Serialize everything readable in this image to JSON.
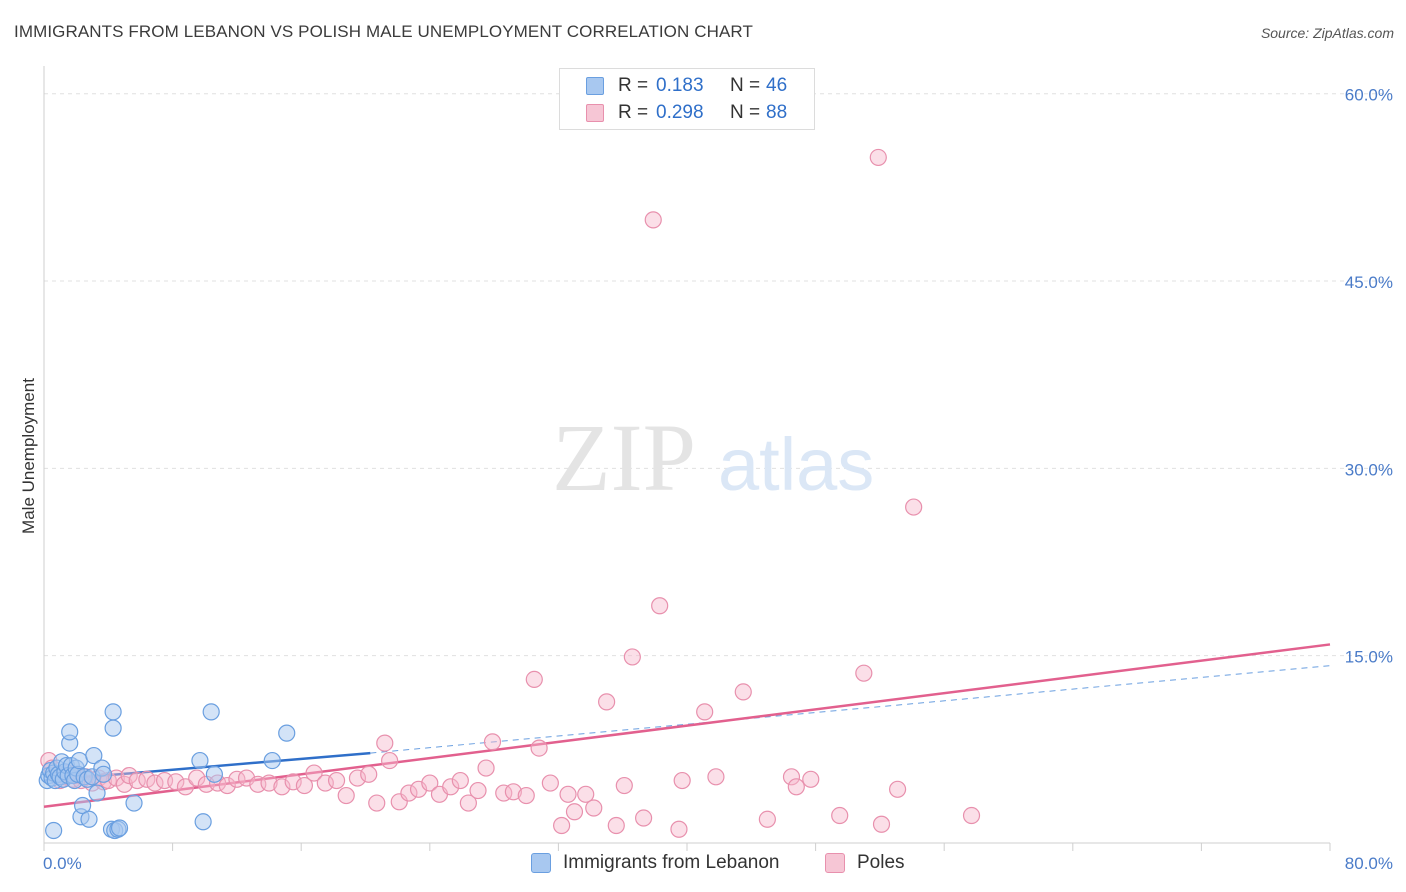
{
  "header": {
    "title": "IMMIGRANTS FROM LEBANON VS POLISH MALE UNEMPLOYMENT CORRELATION CHART",
    "source": "Source: ZipAtlas.com"
  },
  "watermark": {
    "part1": "ZIP",
    "part2": "atlas"
  },
  "legend": {
    "rows": [
      {
        "r_label": "R =",
        "r_value": "0.183",
        "n_label": "N =",
        "n_value": "46"
      },
      {
        "r_label": "R =",
        "r_value": "0.298",
        "n_label": "N =",
        "n_value": "88"
      }
    ]
  },
  "bottom_legend": {
    "items": [
      {
        "label": "Immigrants from Lebanon"
      },
      {
        "label": "Poles"
      }
    ]
  },
  "colors": {
    "blue_fill": "#a8c8f0",
    "blue_stroke": "#6a9fe0",
    "blue_line": "#2f6fc9",
    "pink_fill": "#f6b8cc",
    "pink_stroke": "#e890ad",
    "pink_line": "#e2608e",
    "grid": "#e0e0e0",
    "tick_text": "#4a7bc8"
  },
  "chart_data": {
    "type": "scatter",
    "title": "IMMIGRANTS FROM LEBANON VS POLISH MALE UNEMPLOYMENT CORRELATION CHART",
    "xlabel": "",
    "ylabel": "Male Unemployment",
    "xlim": [
      0,
      80
    ],
    "ylim": [
      0,
      61.5
    ],
    "x_tick_labels": [
      "0.0%",
      "80.0%"
    ],
    "y_ticks": [
      15,
      30,
      45,
      60
    ],
    "y_tick_labels": [
      "15.0%",
      "30.0%",
      "45.0%",
      "60.0%"
    ],
    "grid": true,
    "legend_position": "top-center",
    "series": [
      {
        "name": "Immigrants from Lebanon",
        "R": 0.183,
        "N": 46,
        "trend": {
          "x": [
            0,
            20.3
          ],
          "y": [
            5.0,
            7.2
          ]
        },
        "trend_extension": {
          "x": [
            20.3,
            80
          ],
          "y": [
            7.2,
            14.2
          ]
        },
        "points": [
          [
            0.2,
            5.0
          ],
          [
            0.3,
            5.4
          ],
          [
            0.4,
            5.8
          ],
          [
            0.5,
            5.2
          ],
          [
            0.6,
            5.6
          ],
          [
            0.7,
            5.0
          ],
          [
            0.8,
            6.0
          ],
          [
            0.9,
            5.5
          ],
          [
            1.0,
            5.3
          ],
          [
            1.1,
            6.5
          ],
          [
            1.2,
            5.1
          ],
          [
            1.3,
            5.7
          ],
          [
            1.4,
            6.2
          ],
          [
            1.5,
            5.4
          ],
          [
            1.6,
            8.0
          ],
          [
            1.6,
            8.9
          ],
          [
            1.7,
            6.2
          ],
          [
            1.8,
            5.4
          ],
          [
            1.9,
            5.0
          ],
          [
            2.0,
            6.0
          ],
          [
            2.1,
            5.5
          ],
          [
            2.2,
            6.6
          ],
          [
            2.3,
            2.1
          ],
          [
            2.4,
            3.0
          ],
          [
            2.5,
            5.3
          ],
          [
            2.7,
            5.1
          ],
          [
            2.8,
            1.9
          ],
          [
            3.0,
            5.3
          ],
          [
            3.3,
            4.0
          ],
          [
            3.1,
            7.0
          ],
          [
            3.6,
            6.0
          ],
          [
            3.7,
            5.5
          ],
          [
            4.2,
            1.1
          ],
          [
            4.3,
            10.5
          ],
          [
            4.3,
            9.2
          ],
          [
            4.4,
            1.0
          ],
          [
            4.6,
            1.1
          ],
          [
            4.7,
            1.2
          ],
          [
            5.6,
            3.2
          ],
          [
            9.7,
            6.6
          ],
          [
            9.9,
            1.7
          ],
          [
            10.4,
            10.5
          ],
          [
            10.6,
            5.5
          ],
          [
            14.2,
            6.6
          ],
          [
            15.1,
            8.8
          ],
          [
            0.6,
            1.0
          ]
        ]
      },
      {
        "name": "Poles",
        "R": 0.298,
        "N": 88,
        "trend": {
          "x": [
            0,
            80
          ],
          "y": [
            2.9,
            15.9
          ]
        },
        "points": [
          [
            0.3,
            6.6
          ],
          [
            0.5,
            6.0
          ],
          [
            0.8,
            5.5
          ],
          [
            1.0,
            5.0
          ],
          [
            1.3,
            5.3
          ],
          [
            1.5,
            5.6
          ],
          [
            1.8,
            5.1
          ],
          [
            2.0,
            5.4
          ],
          [
            2.3,
            5.0
          ],
          [
            2.6,
            5.3
          ],
          [
            3.0,
            4.8
          ],
          [
            3.4,
            5.2
          ],
          [
            3.7,
            4.9
          ],
          [
            4.0,
            5.0
          ],
          [
            4.5,
            5.2
          ],
          [
            5.0,
            4.7
          ],
          [
            5.3,
            5.4
          ],
          [
            5.8,
            5.0
          ],
          [
            6.4,
            5.1
          ],
          [
            6.9,
            4.8
          ],
          [
            7.5,
            5.0
          ],
          [
            8.2,
            4.9
          ],
          [
            8.8,
            4.5
          ],
          [
            9.5,
            5.2
          ],
          [
            10.1,
            4.7
          ],
          [
            10.8,
            4.8
          ],
          [
            11.4,
            4.6
          ],
          [
            12.0,
            5.1
          ],
          [
            12.6,
            5.2
          ],
          [
            13.3,
            4.7
          ],
          [
            14.0,
            4.8
          ],
          [
            14.8,
            4.5
          ],
          [
            15.5,
            4.9
          ],
          [
            16.2,
            4.6
          ],
          [
            16.8,
            5.6
          ],
          [
            17.5,
            4.8
          ],
          [
            18.2,
            5.0
          ],
          [
            18.8,
            3.8
          ],
          [
            19.5,
            5.2
          ],
          [
            20.2,
            5.5
          ],
          [
            20.7,
            3.2
          ],
          [
            21.2,
            8.0
          ],
          [
            21.5,
            6.6
          ],
          [
            22.1,
            3.3
          ],
          [
            22.7,
            4.0
          ],
          [
            23.3,
            4.3
          ],
          [
            24.0,
            4.8
          ],
          [
            24.6,
            3.9
          ],
          [
            25.3,
            4.5
          ],
          [
            25.9,
            5.0
          ],
          [
            26.4,
            3.2
          ],
          [
            27.0,
            4.2
          ],
          [
            27.5,
            6.0
          ],
          [
            27.9,
            8.1
          ],
          [
            28.6,
            4.0
          ],
          [
            29.2,
            4.1
          ],
          [
            30.0,
            3.8
          ],
          [
            30.5,
            13.1
          ],
          [
            30.8,
            7.6
          ],
          [
            31.5,
            4.8
          ],
          [
            32.2,
            1.4
          ],
          [
            32.6,
            3.9
          ],
          [
            33.0,
            2.5
          ],
          [
            33.7,
            3.9
          ],
          [
            34.2,
            2.8
          ],
          [
            35.0,
            11.3
          ],
          [
            35.6,
            1.4
          ],
          [
            36.1,
            4.6
          ],
          [
            36.6,
            14.9
          ],
          [
            37.3,
            2.0
          ],
          [
            37.9,
            49.9
          ],
          [
            38.3,
            19.0
          ],
          [
            39.5,
            1.1
          ],
          [
            39.7,
            5.0
          ],
          [
            41.1,
            10.5
          ],
          [
            41.8,
            5.3
          ],
          [
            43.5,
            12.1
          ],
          [
            45.0,
            1.9
          ],
          [
            46.5,
            5.3
          ],
          [
            46.8,
            4.5
          ],
          [
            47.7,
            5.1
          ],
          [
            49.5,
            2.2
          ],
          [
            51.0,
            13.6
          ],
          [
            52.1,
            1.5
          ],
          [
            53.1,
            4.3
          ],
          [
            54.1,
            26.9
          ],
          [
            57.7,
            2.2
          ],
          [
            51.9,
            54.9
          ]
        ]
      }
    ]
  }
}
